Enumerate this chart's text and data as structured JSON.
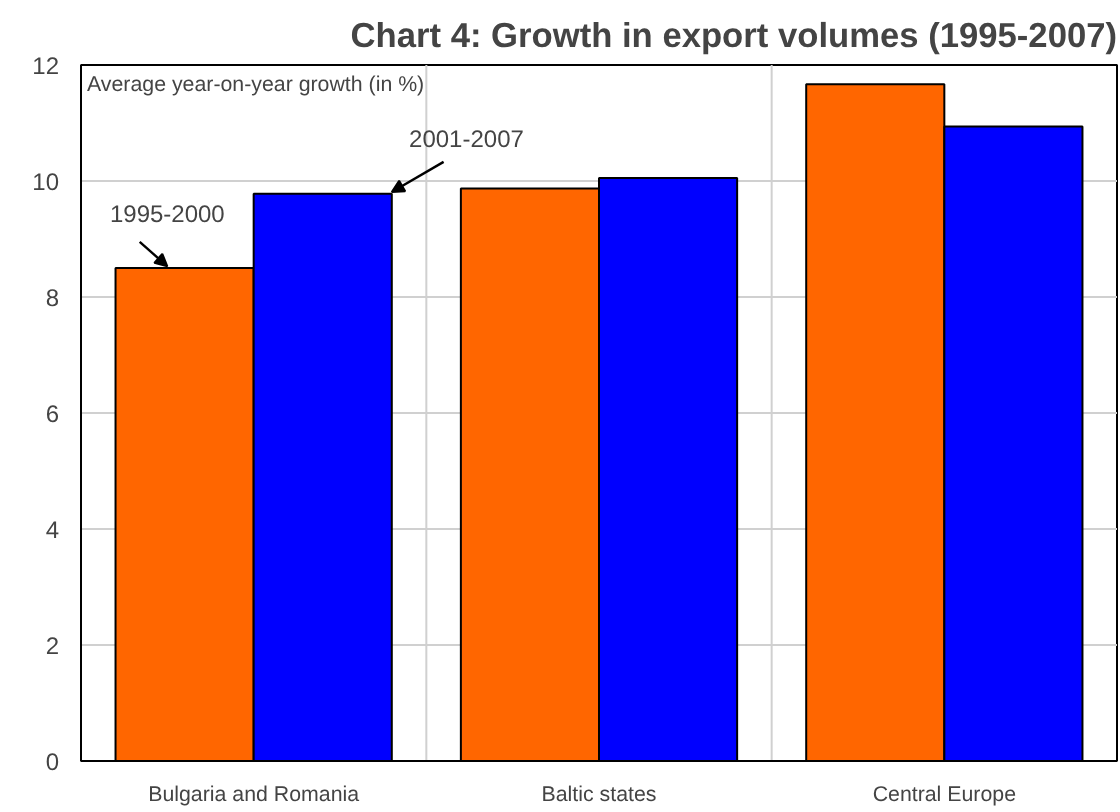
{
  "chart_data": {
    "type": "bar",
    "title": "Chart 4: Growth in export volumes (1995-2007)",
    "ylabel": "Average year-on-year growth (in %)",
    "categories": [
      "Bulgaria and Romania",
      "Baltic states",
      "Central Europe"
    ],
    "series": [
      {
        "name": "1995-2000",
        "color": "#ff6600",
        "values": [
          8.5,
          9.87,
          11.67
        ]
      },
      {
        "name": "2001-2007",
        "color": "#0000ff",
        "values": [
          9.78,
          10.05,
          10.94
        ]
      }
    ],
    "ylim": [
      0,
      12
    ],
    "yticks": [
      0,
      2,
      4,
      6,
      8,
      10,
      12
    ],
    "grid": true
  }
}
